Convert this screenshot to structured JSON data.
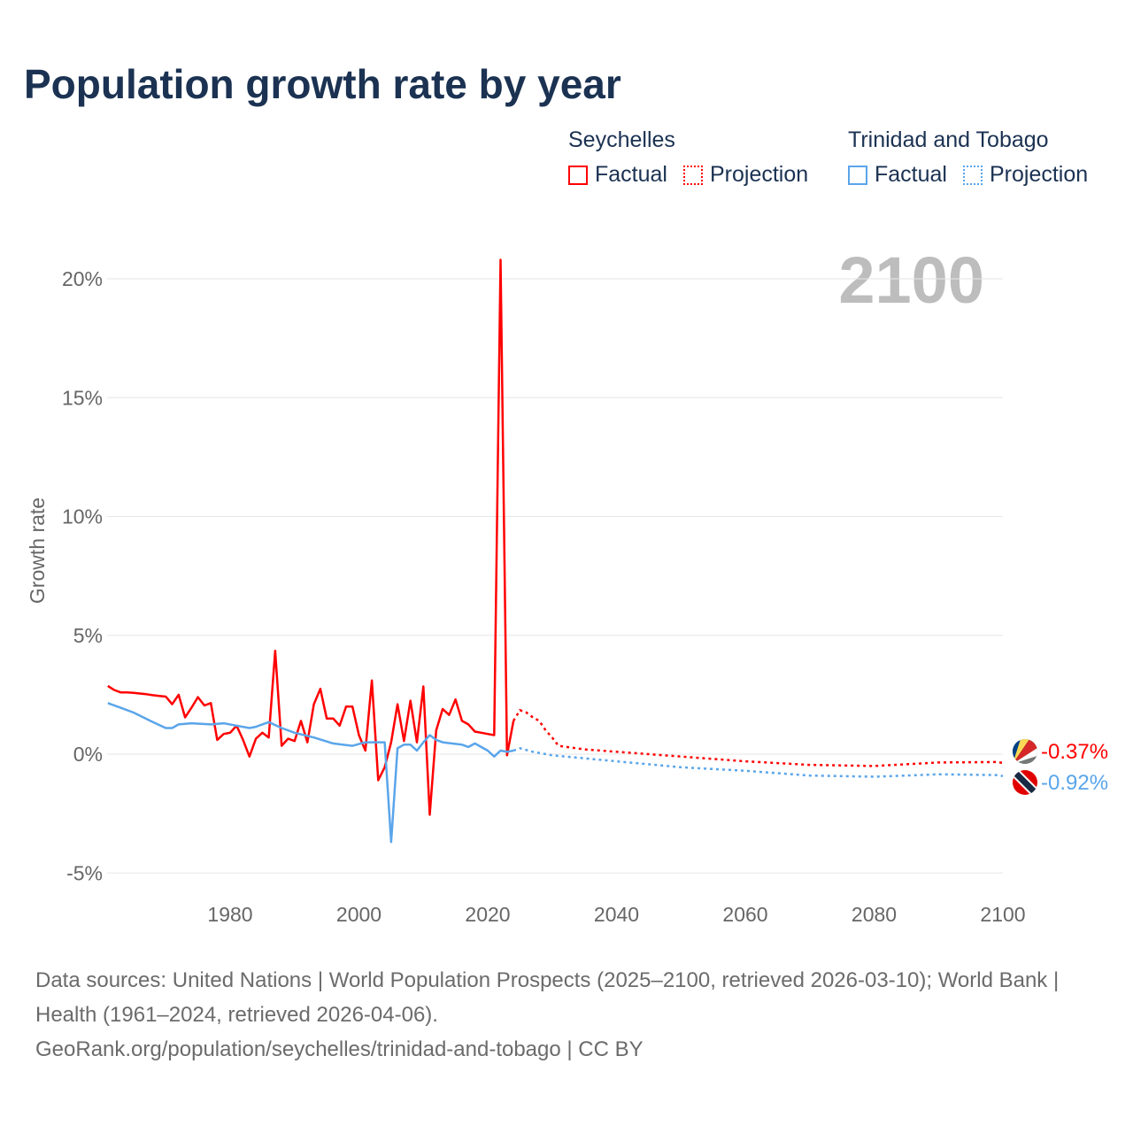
{
  "title": "Population growth rate by year",
  "legend": {
    "groups": [
      {
        "country": "Seychelles",
        "color": "#ff0000",
        "factual": "Factual",
        "projection": "Projection"
      },
      {
        "country": "Trinidad and Tobago",
        "color": "#5aa5ea",
        "factual": "Factual",
        "projection": "Projection"
      }
    ]
  },
  "year_display": "2100",
  "footer": {
    "sources": "Data sources: United Nations | World Population Prospects (2025–2100, retrieved 2026-03-10); World Bank | Health (1961–2024, retrieved 2026-04-06).",
    "credit": "GeoRank.org/population/seychelles/trinidad-and-tobago | CC BY"
  },
  "chart_data": {
    "type": "line",
    "title": "Population growth rate by year",
    "xlabel": "",
    "ylabel": "Growth rate",
    "xlim": [
      1961,
      2100
    ],
    "ylim": [
      -5,
      21
    ],
    "x_ticks": [
      "1980",
      "2000",
      "2020",
      "2040",
      "2060",
      "2080",
      "2100"
    ],
    "x_tick_values": [
      1980,
      2000,
      2020,
      2040,
      2060,
      2080,
      2100
    ],
    "y_ticks": [
      "20%",
      "15%",
      "10%",
      "5%",
      "0%",
      "-5%"
    ],
    "y_tick_values": [
      20,
      15,
      10,
      5,
      0,
      -5
    ],
    "grid": true,
    "legend_position": "top-right",
    "series": [
      {
        "name": "Seychelles",
        "color": "#ff0000",
        "end_label": "-0.37%",
        "factual": [
          [
            1961,
            2.87
          ],
          [
            1962,
            2.7
          ],
          [
            1963,
            2.6
          ],
          [
            1964,
            2.6
          ],
          [
            1965,
            2.58
          ],
          [
            1966,
            2.55
          ],
          [
            1967,
            2.52
          ],
          [
            1968,
            2.48
          ],
          [
            1969,
            2.45
          ],
          [
            1970,
            2.42
          ],
          [
            1971,
            2.1
          ],
          [
            1972,
            2.5
          ],
          [
            1973,
            1.55
          ],
          [
            1974,
            1.95
          ],
          [
            1975,
            2.4
          ],
          [
            1976,
            2.05
          ],
          [
            1977,
            2.15
          ],
          [
            1978,
            0.6
          ],
          [
            1979,
            0.85
          ],
          [
            1980,
            0.9
          ],
          [
            1981,
            1.2
          ],
          [
            1982,
            0.6
          ],
          [
            1983,
            -0.1
          ],
          [
            1984,
            0.65
          ],
          [
            1985,
            0.9
          ],
          [
            1986,
            0.7
          ],
          [
            1987,
            4.35
          ],
          [
            1988,
            0.35
          ],
          [
            1989,
            0.65
          ],
          [
            1990,
            0.55
          ],
          [
            1991,
            1.4
          ],
          [
            1992,
            0.5
          ],
          [
            1993,
            2.1
          ],
          [
            1994,
            2.75
          ],
          [
            1995,
            1.5
          ],
          [
            1996,
            1.5
          ],
          [
            1997,
            1.2
          ],
          [
            1998,
            2.0
          ],
          [
            1999,
            2.0
          ],
          [
            2000,
            0.8
          ],
          [
            2001,
            0.15
          ],
          [
            2002,
            3.1
          ],
          [
            2003,
            -1.1
          ],
          [
            2004,
            -0.55
          ],
          [
            2005,
            0.5
          ],
          [
            2006,
            2.1
          ],
          [
            2007,
            0.55
          ],
          [
            2008,
            2.25
          ],
          [
            2009,
            0.5
          ],
          [
            2010,
            2.85
          ],
          [
            2011,
            -2.55
          ],
          [
            2012,
            1.0
          ],
          [
            2013,
            1.9
          ],
          [
            2014,
            1.65
          ],
          [
            2015,
            2.3
          ],
          [
            2016,
            1.4
          ],
          [
            2017,
            1.25
          ],
          [
            2018,
            0.95
          ],
          [
            2019,
            0.9
          ],
          [
            2020,
            0.85
          ],
          [
            2021,
            0.8
          ],
          [
            2022,
            20.8
          ],
          [
            2023,
            -0.05
          ],
          [
            2024,
            1.4
          ]
        ],
        "projection": [
          [
            2024,
            1.4
          ],
          [
            2025,
            1.85
          ],
          [
            2026,
            1.75
          ],
          [
            2027,
            1.55
          ],
          [
            2028,
            1.4
          ],
          [
            2029,
            1.0
          ],
          [
            2030,
            0.7
          ],
          [
            2031,
            0.35
          ],
          [
            2035,
            0.2
          ],
          [
            2040,
            0.1
          ],
          [
            2050,
            -0.1
          ],
          [
            2060,
            -0.3
          ],
          [
            2070,
            -0.45
          ],
          [
            2080,
            -0.5
          ],
          [
            2090,
            -0.35
          ],
          [
            2099,
            -0.33
          ],
          [
            2100,
            -0.37
          ]
        ]
      },
      {
        "name": "Trinidad and Tobago",
        "color": "#5aa5ea",
        "end_label": "-0.92%",
        "factual": [
          [
            1961,
            2.15
          ],
          [
            1963,
            1.95
          ],
          [
            1965,
            1.75
          ],
          [
            1968,
            1.35
          ],
          [
            1970,
            1.1
          ],
          [
            1971,
            1.1
          ],
          [
            1972,
            1.25
          ],
          [
            1974,
            1.3
          ],
          [
            1977,
            1.25
          ],
          [
            1979,
            1.3
          ],
          [
            1981,
            1.2
          ],
          [
            1983,
            1.1
          ],
          [
            1984,
            1.15
          ],
          [
            1986,
            1.35
          ],
          [
            1988,
            1.1
          ],
          [
            1990,
            0.9
          ],
          [
            1993,
            0.7
          ],
          [
            1996,
            0.45
          ],
          [
            1999,
            0.35
          ],
          [
            2001,
            0.5
          ],
          [
            2004,
            0.5
          ],
          [
            2005,
            -3.7
          ],
          [
            2006,
            0.25
          ],
          [
            2007,
            0.4
          ],
          [
            2008,
            0.4
          ],
          [
            2009,
            0.15
          ],
          [
            2010,
            0.5
          ],
          [
            2011,
            0.8
          ],
          [
            2012,
            0.6
          ],
          [
            2013,
            0.5
          ],
          [
            2016,
            0.4
          ],
          [
            2017,
            0.3
          ],
          [
            2018,
            0.45
          ],
          [
            2020,
            0.15
          ],
          [
            2021,
            -0.1
          ],
          [
            2022,
            0.15
          ],
          [
            2023,
            0.1
          ],
          [
            2024,
            0.15
          ]
        ],
        "projection": [
          [
            2024,
            0.15
          ],
          [
            2025,
            0.25
          ],
          [
            2027,
            0.1
          ],
          [
            2030,
            -0.05
          ],
          [
            2040,
            -0.3
          ],
          [
            2050,
            -0.55
          ],
          [
            2060,
            -0.7
          ],
          [
            2070,
            -0.9
          ],
          [
            2080,
            -0.95
          ],
          [
            2090,
            -0.85
          ],
          [
            2099,
            -0.88
          ],
          [
            2100,
            -0.92
          ]
        ]
      }
    ]
  }
}
